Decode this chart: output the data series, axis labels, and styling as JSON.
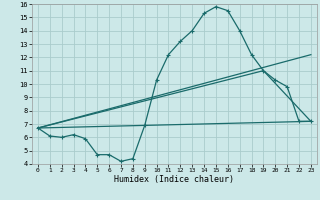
{
  "xlabel": "Humidex (Indice chaleur)",
  "background_color": "#cce8e8",
  "grid_color": "#aacccc",
  "line_color": "#1a6b6b",
  "xlim": [
    -0.5,
    23.5
  ],
  "ylim": [
    4,
    16
  ],
  "yticks": [
    4,
    5,
    6,
    7,
    8,
    9,
    10,
    11,
    12,
    13,
    14,
    15,
    16
  ],
  "xticks": [
    0,
    1,
    2,
    3,
    4,
    5,
    6,
    7,
    8,
    9,
    10,
    11,
    12,
    13,
    14,
    15,
    16,
    17,
    18,
    19,
    20,
    21,
    22,
    23
  ],
  "series1_x": [
    0,
    1,
    2,
    3,
    4,
    5,
    6,
    7,
    8,
    9,
    10,
    11,
    12,
    13,
    14,
    15,
    16,
    17,
    18,
    19,
    20,
    21,
    22,
    23
  ],
  "series1_y": [
    6.7,
    6.1,
    6.0,
    6.2,
    5.9,
    4.7,
    4.7,
    4.2,
    4.4,
    6.9,
    10.3,
    12.2,
    13.2,
    14.0,
    15.3,
    15.8,
    15.5,
    14.0,
    12.2,
    11.0,
    10.3,
    9.8,
    7.2,
    7.2
  ],
  "series2_x": [
    0,
    23
  ],
  "series2_y": [
    6.7,
    7.2
  ],
  "series3_x": [
    0,
    23
  ],
  "series3_y": [
    6.7,
    12.2
  ],
  "series4_x": [
    0,
    19,
    23
  ],
  "series4_y": [
    6.7,
    11.0,
    7.2
  ]
}
